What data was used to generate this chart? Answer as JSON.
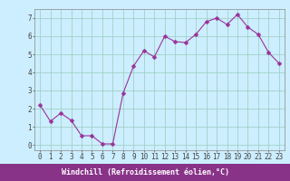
{
  "x": [
    0,
    1,
    2,
    3,
    4,
    5,
    6,
    7,
    8,
    9,
    10,
    11,
    12,
    13,
    14,
    15,
    16,
    17,
    18,
    19,
    20,
    21,
    22,
    23
  ],
  "y": [
    2.2,
    1.3,
    1.75,
    1.35,
    0.5,
    0.5,
    0.05,
    0.05,
    2.85,
    4.35,
    5.2,
    4.85,
    6.0,
    5.7,
    5.65,
    6.1,
    6.8,
    7.0,
    6.65,
    7.2,
    6.5,
    6.1,
    5.1,
    4.5
  ],
  "line_color": "#993399",
  "marker": "D",
  "marker_size": 2.5,
  "bg_color": "#cceeff",
  "grid_color": "#99ccbb",
  "xlabel": "Windchill (Refroidissement éolien,°C)",
  "xlabel_color": "#ffffff",
  "xlabel_bg": "#883388",
  "ylim": [
    -0.3,
    7.5
  ],
  "xlim": [
    -0.5,
    23.5
  ],
  "yticks": [
    0,
    1,
    2,
    3,
    4,
    5,
    6,
    7
  ],
  "xticks": [
    0,
    1,
    2,
    3,
    4,
    5,
    6,
    7,
    8,
    9,
    10,
    11,
    12,
    13,
    14,
    15,
    16,
    17,
    18,
    19,
    20,
    21,
    22,
    23
  ],
  "tick_fontsize": 5.5,
  "label_fontsize": 6.0,
  "spine_color": "#888888",
  "tick_color": "#444444"
}
